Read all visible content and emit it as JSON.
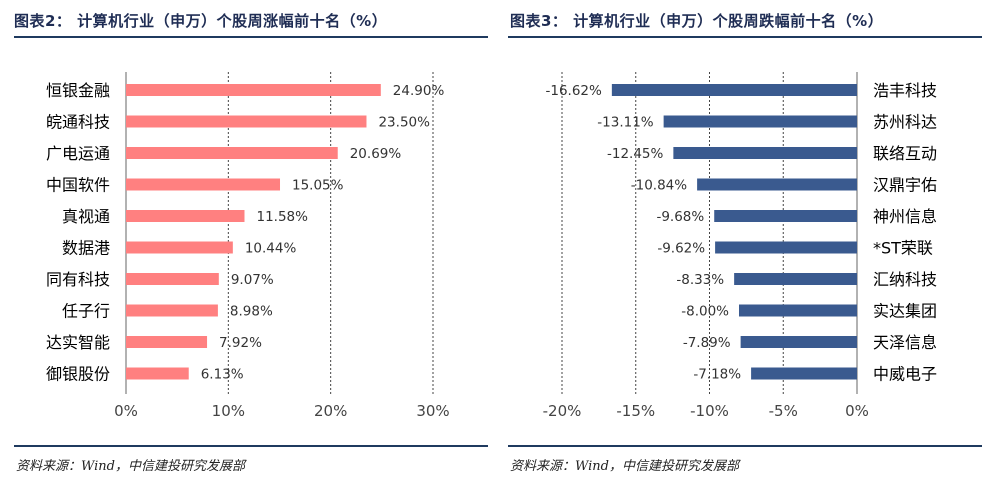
{
  "charts": {
    "left": {
      "title": "图表2： 计算机行业（申万）个股周涨幅前十名（%）",
      "source": "资料来源：Wind，中信建投研究发展部"
    },
    "right": {
      "title": "图表3： 计算机行业（申万）个股周跌幅前十名（%）",
      "source": "资料来源：Wind，中信建投研究发展部"
    }
  },
  "chart_data": [
    {
      "type": "bar",
      "orientation": "horizontal",
      "title": "图表2： 计算机行业（申万）个股周涨幅前十名（%）",
      "categories": [
        "恒银金融",
        "皖通科技",
        "广电运通",
        "中国软件",
        "真视通",
        "数据港",
        "同有科技",
        "任子行",
        "达实智能",
        "御银股份"
      ],
      "values": [
        24.9,
        23.5,
        20.69,
        15.05,
        11.58,
        10.44,
        9.07,
        8.98,
        7.92,
        6.13
      ],
      "value_labels": [
        "24.90%",
        "23.50%",
        "20.69%",
        "15.05%",
        "11.58%",
        "10.44%",
        "9.07%",
        "8.98%",
        "7.92%",
        "6.13%"
      ],
      "xlim": [
        0,
        30
      ],
      "xticks": [
        0,
        10,
        20,
        30
      ],
      "xtick_labels": [
        "0%",
        "10%",
        "20%",
        "30%"
      ],
      "bar_color": "#ff8080",
      "grid": "vertical dashed",
      "category_side": "left"
    },
    {
      "type": "bar",
      "orientation": "horizontal",
      "title": "图表3： 计算机行业（申万）个股周跌幅前十名（%）",
      "categories": [
        "浩丰科技",
        "苏州科达",
        "联络互动",
        "汉鼎宇佑",
        "神州信息",
        "*ST荣联",
        "汇纳科技",
        "实达集团",
        "天泽信息",
        "中威电子"
      ],
      "values": [
        -16.62,
        -13.11,
        -12.45,
        -10.84,
        -9.68,
        -9.62,
        -8.33,
        -8.0,
        -7.89,
        -7.18
      ],
      "value_labels": [
        "-16.62%",
        "-13.11%",
        "-12.45%",
        "-10.84%",
        "-9.68%",
        "-9.62%",
        "-8.33%",
        "-8.00%",
        "-7.89%",
        "-7.18%"
      ],
      "xlim": [
        -20,
        0
      ],
      "xticks": [
        -20,
        -15,
        -10,
        -5,
        0
      ],
      "xtick_labels": [
        "-20%",
        "-15%",
        "-10%",
        "-5%",
        "0%"
      ],
      "bar_color": "#3a5a8f",
      "grid": "vertical dashed",
      "category_side": "right"
    }
  ]
}
